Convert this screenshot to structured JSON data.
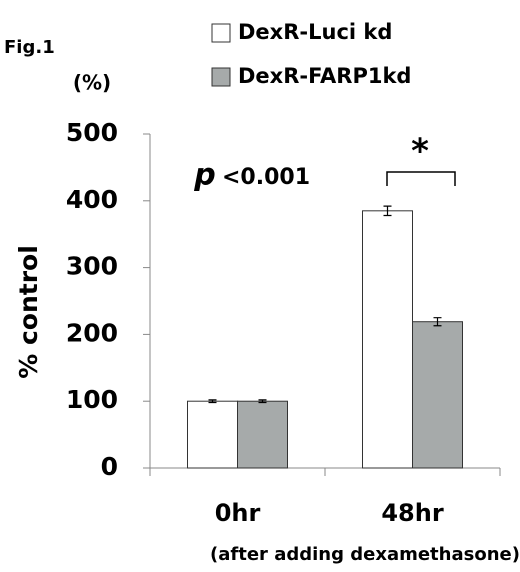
{
  "chart_data": {
    "type": "bar",
    "figure_label": "Fig.1",
    "y_unit": "(%)",
    "ylabel": "% control",
    "xlabel": "(after adding dexamethasone)",
    "categories": [
      "0hr",
      "48hr"
    ],
    "series": [
      {
        "name": "DexR-Luci kd",
        "color": "#ffffff",
        "values": [
          100,
          385
        ],
        "errors": [
          2,
          7
        ]
      },
      {
        "name": "DexR-FARP1kd",
        "color": "#a6aaaa",
        "values": [
          100,
          219
        ],
        "errors": [
          2,
          6
        ]
      }
    ],
    "ylim": [
      0,
      500
    ],
    "yticks": [
      0,
      100,
      200,
      300,
      400,
      500
    ],
    "p_value": {
      "symbol": "p",
      "text": "<0.001"
    },
    "significance": "*"
  }
}
